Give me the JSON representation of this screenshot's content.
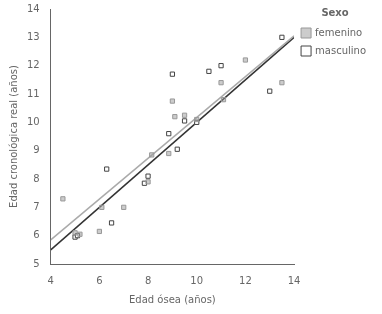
{
  "chart_data": {
    "type": "scatter",
    "xlabel": "Edad ósea (años)",
    "ylabel": "Edad cronológica real (años)",
    "xlim": [
      4,
      14
    ],
    "ylim": [
      5,
      14
    ],
    "xticks": [
      4,
      6,
      8,
      10,
      12,
      14
    ],
    "yticks": [
      5,
      6,
      7,
      8,
      9,
      10,
      11,
      12,
      13,
      14
    ],
    "grid": false,
    "legend": "right",
    "legend_title": "Sexo",
    "series": [
      {
        "name": "femenino",
        "color": "#999999",
        "marker": "square",
        "x": [
          4.5,
          5.0,
          5.2,
          6.0,
          6.1,
          7.0,
          8.0,
          8.15,
          8.85,
          9.0,
          9.1,
          9.5,
          10.0,
          11.0,
          11.1,
          12.0,
          13.5
        ],
        "values": [
          7.3,
          6.1,
          6.05,
          6.15,
          7.0,
          7.0,
          7.9,
          8.85,
          8.9,
          10.75,
          10.2,
          10.25,
          10.1,
          11.4,
          10.8,
          12.2,
          11.4
        ],
        "fit": {
          "x": [
            4,
            14
          ],
          "values": [
            5.85,
            13.05
          ],
          "color": "#aaaaaa"
        }
      },
      {
        "name": "masculino",
        "color": "#444444",
        "marker": "square-open",
        "x": [
          5.0,
          5.1,
          6.3,
          6.5,
          7.85,
          8.0,
          8.85,
          9.0,
          9.2,
          9.5,
          10.0,
          10.5,
          11.0,
          13.0,
          13.5
        ],
        "values": [
          5.95,
          6.0,
          8.35,
          6.45,
          7.85,
          8.1,
          9.6,
          11.7,
          9.05,
          10.05,
          10.0,
          11.8,
          12.0,
          11.1,
          13.0
        ],
        "fit": {
          "x": [
            4,
            14
          ],
          "values": [
            5.5,
            13.0
          ],
          "color": "#333333"
        }
      }
    ]
  }
}
